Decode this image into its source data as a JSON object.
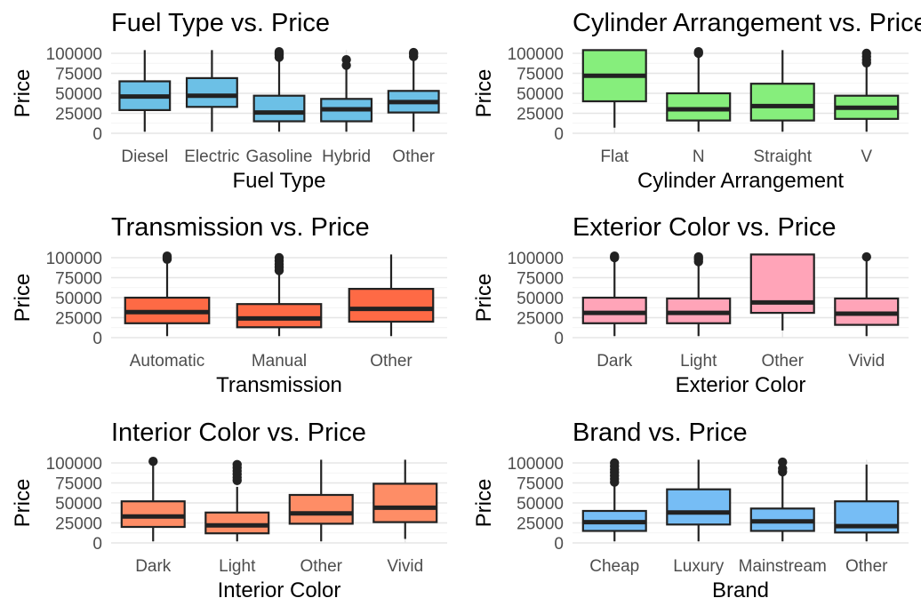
{
  "chart_data": [
    {
      "type": "boxplot",
      "title": "Fuel Type vs. Price",
      "xlabel": "Fuel Type",
      "ylabel": "Price",
      "fill": "#6cc0e6",
      "ylim": [
        0,
        100000
      ],
      "yticks": [
        "0",
        "25000",
        "50000",
        "75000",
        "100000"
      ],
      "categories": [
        {
          "label": "Diesel",
          "min": 2000,
          "q1": 29000,
          "median": 46000,
          "q3": 65000,
          "max": 104000,
          "outliers": []
        },
        {
          "label": "Electric",
          "min": 2000,
          "q1": 33000,
          "median": 47000,
          "q3": 69000,
          "max": 104000,
          "outliers": []
        },
        {
          "label": "Gasoline",
          "min": 2000,
          "q1": 15000,
          "median": 26000,
          "q3": 47000,
          "max": 91000,
          "outliers": [
            95000,
            98000,
            100000,
            102000
          ]
        },
        {
          "label": "Hybrid",
          "min": 2000,
          "q1": 15000,
          "median": 30000,
          "q3": 43000,
          "max": 80000,
          "outliers": [
            85000,
            92000
          ]
        },
        {
          "label": "Other",
          "min": 2000,
          "q1": 26000,
          "median": 39000,
          "q3": 53000,
          "max": 92000,
          "outliers": [
            96000,
            99000,
            101000
          ]
        }
      ]
    },
    {
      "type": "boxplot",
      "title": "Cylinder Arrangement vs. Price",
      "xlabel": "Cylinder Arrangement",
      "ylabel": "Price",
      "fill": "#86ee7c",
      "ylim": [
        0,
        100000
      ],
      "yticks": [
        "0",
        "25000",
        "50000",
        "75000",
        "100000"
      ],
      "categories": [
        {
          "label": "Flat",
          "min": 7000,
          "q1": 40000,
          "median": 72000,
          "q3": 104000,
          "max": 104000,
          "outliers": []
        },
        {
          "label": "N",
          "min": 2000,
          "q1": 16000,
          "median": 30000,
          "q3": 50000,
          "max": 98000,
          "outliers": [
            100000,
            102000
          ]
        },
        {
          "label": "Straight",
          "min": 2000,
          "q1": 16000,
          "median": 34000,
          "q3": 62000,
          "max": 104000,
          "outliers": []
        },
        {
          "label": "V",
          "min": 2000,
          "q1": 18000,
          "median": 32000,
          "q3": 47000,
          "max": 85000,
          "outliers": [
            88000,
            92000,
            96000,
            100000
          ]
        }
      ]
    },
    {
      "type": "boxplot",
      "title": "Transmission vs. Price",
      "xlabel": "Transmission",
      "ylabel": "Price",
      "fill": "#fe6a45",
      "ylim": [
        0,
        100000
      ],
      "yticks": [
        "0",
        "25000",
        "50000",
        "75000",
        "100000"
      ],
      "categories": [
        {
          "label": "Automatic",
          "min": 2000,
          "q1": 18000,
          "median": 32000,
          "q3": 50000,
          "max": 95000,
          "outliers": [
            98000,
            100000,
            102000
          ]
        },
        {
          "label": "Manual",
          "min": 2000,
          "q1": 13000,
          "median": 24000,
          "q3": 42000,
          "max": 80000,
          "outliers": [
            84000,
            88000,
            92000,
            96000,
            100000
          ]
        },
        {
          "label": "Other",
          "min": 2000,
          "q1": 20000,
          "median": 36000,
          "q3": 61000,
          "max": 104000,
          "outliers": []
        }
      ]
    },
    {
      "type": "boxplot",
      "title": "Exterior Color vs. Price",
      "xlabel": "Exterior Color",
      "ylabel": "Price",
      "fill": "#ffa4b8",
      "ylim": [
        0,
        100000
      ],
      "yticks": [
        "0",
        "25000",
        "50000",
        "75000",
        "100000"
      ],
      "categories": [
        {
          "label": "Dark",
          "min": 2000,
          "q1": 18000,
          "median": 31000,
          "q3": 50000,
          "max": 98000,
          "outliers": [
            100000,
            102000
          ]
        },
        {
          "label": "Light",
          "min": 2000,
          "q1": 18000,
          "median": 31000,
          "q3": 49000,
          "max": 92000,
          "outliers": [
            95000,
            98000,
            101000
          ]
        },
        {
          "label": "Other",
          "min": 9000,
          "q1": 31000,
          "median": 44000,
          "q3": 104000,
          "max": 104000,
          "outliers": []
        },
        {
          "label": "Vivid",
          "min": 2000,
          "q1": 16000,
          "median": 30000,
          "q3": 49000,
          "max": 98000,
          "outliers": [
            101000
          ]
        }
      ]
    },
    {
      "type": "boxplot",
      "title": "Interior Color vs. Price",
      "xlabel": "Interior Color",
      "ylabel": "Price",
      "fill": "#fe8d66",
      "ylim": [
        0,
        100000
      ],
      "yticks": [
        "0",
        "25000",
        "50000",
        "75000",
        "100000"
      ],
      "categories": [
        {
          "label": "Dark",
          "min": 2000,
          "q1": 20000,
          "median": 33000,
          "q3": 52000,
          "max": 98000,
          "outliers": [
            102000
          ]
        },
        {
          "label": "Light",
          "min": 2000,
          "q1": 12000,
          "median": 22000,
          "q3": 38000,
          "max": 70000,
          "outliers": [
            78000,
            82000,
            86000,
            90000,
            94000,
            98000
          ]
        },
        {
          "label": "Other",
          "min": 2000,
          "q1": 24000,
          "median": 37000,
          "q3": 60000,
          "max": 104000,
          "outliers": []
        },
        {
          "label": "Vivid",
          "min": 5000,
          "q1": 26000,
          "median": 44000,
          "q3": 74000,
          "max": 104000,
          "outliers": []
        }
      ]
    },
    {
      "type": "boxplot",
      "title": "Brand vs. Price",
      "xlabel": "Brand",
      "ylabel": "Price",
      "fill": "#76bdf5",
      "ylim": [
        0,
        100000
      ],
      "yticks": [
        "0",
        "25000",
        "50000",
        "75000",
        "100000"
      ],
      "categories": [
        {
          "label": "Cheap",
          "min": 2000,
          "q1": 15000,
          "median": 26000,
          "q3": 40000,
          "max": 72000,
          "outliers": [
            76000,
            80000,
            84000,
            88000,
            92000,
            96000,
            100000
          ]
        },
        {
          "label": "Luxury",
          "min": 2000,
          "q1": 23000,
          "median": 38000,
          "q3": 67000,
          "max": 104000,
          "outliers": []
        },
        {
          "label": "Mainstream",
          "min": 2000,
          "q1": 15000,
          "median": 27000,
          "q3": 43000,
          "max": 85000,
          "outliers": [
            89000,
            93000,
            101000
          ]
        },
        {
          "label": "Other",
          "min": 2000,
          "q1": 13000,
          "median": 21000,
          "q3": 52000,
          "max": 98000,
          "outliers": []
        }
      ]
    }
  ]
}
